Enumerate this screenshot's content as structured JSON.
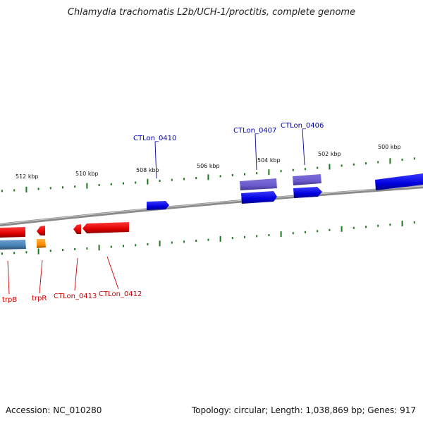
{
  "title": "Chlamydia trachomatis L2b/UCH-1/proctitis, complete genome",
  "footer": {
    "accession": "Accession: NC_010280",
    "topology": "Topology: circular; Length: 1,038,869 bp; Genes: 917"
  },
  "scale_labels": [
    "512 kbp",
    "510 kbp",
    "508 kbp",
    "506 kbp",
    "504 kbp",
    "502 kbp",
    "500 kbp"
  ],
  "labels_top": [
    "CTLon_0410",
    "CTLon_0407",
    "CTLon_0406"
  ],
  "labels_bottom": [
    "trpB",
    "trpR",
    "CTLon_0413",
    "CTLon_0412"
  ],
  "colors": {
    "forward_gene": "#0000e0",
    "forward_label": "#0000aa",
    "reverse_gene": "#e00000",
    "reverse_label": "#cc0000",
    "rna_feature": "#6a5acd",
    "tick": "#1a7a1a",
    "backbone": "#888888",
    "trpB_track2": "#4682b4",
    "trpR_track2": "#ff8c00"
  }
}
